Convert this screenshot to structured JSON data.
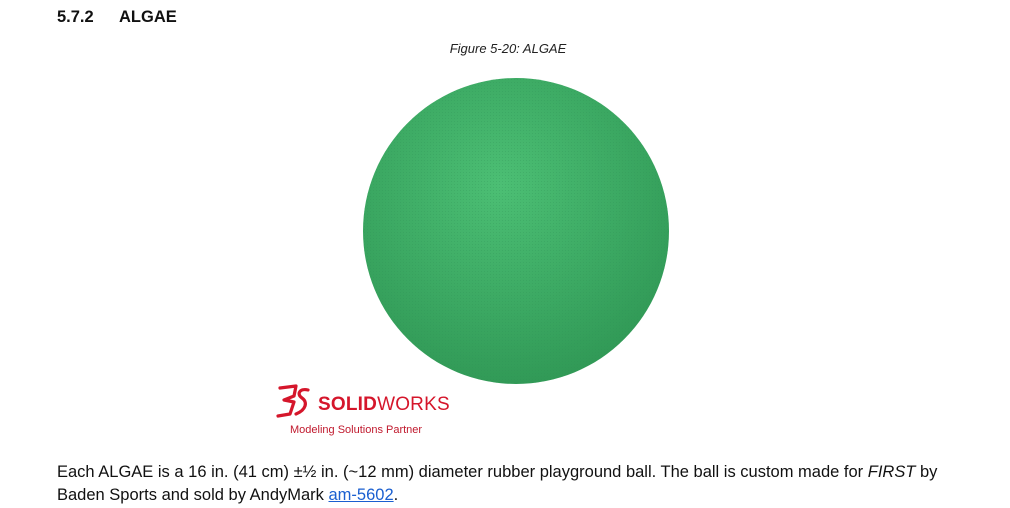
{
  "section": {
    "number": "5.7.2",
    "title": "ALGAE"
  },
  "figure": {
    "caption": "Figure 5-20: ALGAE",
    "ball_color": "#3daa62"
  },
  "logo": {
    "brand_bold": "SOLID",
    "brand_light": "WORKS",
    "tagline": "Modeling Solutions Partner",
    "color": "#d5162b"
  },
  "paragraph": {
    "text_before": "Each ALGAE is a 16 in. (41 cm) ±½ in. (~12 mm) diameter rubber playground ball. The ball is custom made for ",
    "first_emphasis": "FIRST",
    "text_middle": " by Baden Sports and sold by AndyMark ",
    "link_text": "am-5602",
    "text_after": "."
  }
}
